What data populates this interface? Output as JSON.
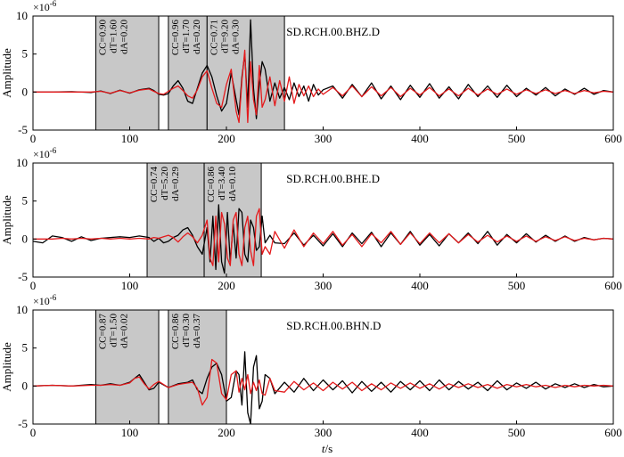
{
  "figure": {
    "xlabel": "t/s",
    "xlabel_italic": "t",
    "xlabel_unit": "/s"
  },
  "chart_data": [
    {
      "type": "line",
      "title": "SD.RCH.00.BHZ.D",
      "ylabel": "Amplitude",
      "exponent": "×10",
      "exponent_power": "-6",
      "xlim": [
        0,
        600
      ],
      "ylim": [
        -5,
        10
      ],
      "xticks": [
        0,
        100,
        200,
        300,
        400,
        500,
        600
      ],
      "yticks": [
        -5,
        0,
        5,
        10
      ],
      "colors": {
        "observed": "#000000",
        "synthetic": "#e41a1c",
        "window": "#c8c8c8"
      },
      "windows": [
        {
          "start": 65,
          "end": 130,
          "labels": [
            "CC=0.90",
            "dT=1.60",
            "dA=0.20"
          ]
        },
        {
          "start": 140,
          "end": 180,
          "labels": [
            "CC=0.96",
            "dT=1.70",
            "dA=0.20"
          ]
        },
        {
          "start": 180,
          "end": 260,
          "labels": [
            "CC=0.71",
            "dT=9.20",
            "dA=0.30"
          ]
        }
      ],
      "series": [
        {
          "role": "observed",
          "x": [
            0,
            20,
            40,
            60,
            70,
            80,
            90,
            100,
            110,
            120,
            125,
            130,
            135,
            140,
            145,
            150,
            155,
            160,
            165,
            170,
            175,
            180,
            185,
            190,
            195,
            200,
            205,
            210,
            213,
            216,
            219,
            222,
            225,
            228,
            231,
            234,
            237,
            240,
            245,
            250,
            255,
            260,
            265,
            270,
            275,
            280,
            285,
            290,
            295,
            300,
            310,
            320,
            330,
            340,
            350,
            360,
            370,
            380,
            390,
            400,
            410,
            420,
            430,
            440,
            450,
            460,
            470,
            480,
            490,
            500,
            510,
            520,
            530,
            540,
            550,
            560,
            570,
            580,
            590,
            600
          ],
          "y": [
            0,
            0,
            0.05,
            -0.05,
            0.15,
            -0.2,
            0.25,
            -0.15,
            0.3,
            0.5,
            0.2,
            -0.3,
            -0.4,
            -0.2,
            0.8,
            1.5,
            0.5,
            -1.2,
            -1.5,
            0.5,
            2.5,
            3.5,
            2.0,
            -0.5,
            -2.5,
            -1.5,
            2.5,
            -1.0,
            -3.0,
            2.0,
            5.0,
            -2.0,
            9.5,
            0.5,
            -3.5,
            1.0,
            4.0,
            3.0,
            -1.2,
            1.2,
            -0.8,
            0.6,
            -1.0,
            1.2,
            -0.6,
            0.8,
            -1.2,
            1.0,
            -0.4,
            0.3,
            0.8,
            -0.8,
            1.0,
            -0.6,
            1.2,
            -0.9,
            0.8,
            -1.0,
            0.9,
            -0.7,
            1.1,
            -0.8,
            0.7,
            -0.9,
            1.0,
            -0.6,
            0.8,
            -0.7,
            0.9,
            -0.6,
            0.5,
            -0.4,
            0.6,
            -0.5,
            0.4,
            -0.3,
            0.5,
            -0.3,
            0.2,
            0
          ]
        },
        {
          "role": "synthetic",
          "x": [
            0,
            20,
            40,
            60,
            70,
            80,
            90,
            100,
            110,
            120,
            125,
            130,
            135,
            140,
            145,
            150,
            155,
            160,
            165,
            170,
            175,
            180,
            185,
            190,
            195,
            200,
            205,
            210,
            213,
            216,
            219,
            222,
            225,
            228,
            231,
            234,
            237,
            240,
            245,
            250,
            255,
            260,
            265,
            270,
            275,
            280,
            285,
            290,
            295,
            300,
            310,
            320,
            330,
            340,
            350,
            360,
            370,
            380,
            390,
            400,
            410,
            420,
            430,
            440,
            450,
            460,
            470,
            480,
            490,
            500,
            510,
            520,
            530,
            540,
            550,
            560,
            570,
            580,
            590,
            600
          ],
          "y": [
            0,
            0,
            0,
            0,
            0.1,
            -0.15,
            0.2,
            -0.1,
            0.25,
            0.4,
            0.1,
            -0.2,
            -0.3,
            0.1,
            0.5,
            0.8,
            0.2,
            -0.5,
            -0.8,
            0.3,
            2.0,
            2.8,
            0.5,
            -1.5,
            -2.0,
            1.0,
            3.0,
            -2.5,
            -4.0,
            1.5,
            5.5,
            -4.0,
            4.0,
            -1.0,
            -3.0,
            3.5,
            -2.0,
            -1.0,
            2.0,
            -1.8,
            1.5,
            -1.2,
            2.0,
            -1.5,
            1.0,
            -0.5,
            0.8,
            -0.6,
            0.4,
            -0.3,
            0.6,
            -0.5,
            0.8,
            -0.6,
            0.7,
            -0.5,
            0.6,
            -0.6,
            0.5,
            -0.4,
            0.6,
            -0.5,
            0.4,
            -0.5,
            0.5,
            -0.4,
            0.4,
            -0.3,
            0.4,
            -0.3,
            0.3,
            -0.2,
            0.3,
            -0.2,
            0.2,
            -0.2,
            0.2,
            -0.1,
            0.1,
            0
          ]
        }
      ]
    },
    {
      "type": "line",
      "title": "SD.RCH.00.BHE.D",
      "ylabel": "Amplitude",
      "exponent": "×10",
      "exponent_power": "-6",
      "xlim": [
        0,
        600
      ],
      "ylim": [
        -5,
        10
      ],
      "xticks": [
        0,
        100,
        200,
        300,
        400,
        500,
        600
      ],
      "yticks": [
        -5,
        0,
        5,
        10
      ],
      "colors": {
        "observed": "#000000",
        "synthetic": "#e41a1c",
        "window": "#c8c8c8"
      },
      "windows": [
        {
          "start": 118,
          "end": 177,
          "labels": [
            "CC=0.74",
            "dT=5.20",
            "dA=0.29"
          ]
        },
        {
          "start": 177,
          "end": 236,
          "labels": [
            "CC=0.86",
            "dT=3.40",
            "dA=0.10"
          ]
        }
      ],
      "series": [
        {
          "role": "observed",
          "x": [
            0,
            10,
            20,
            30,
            40,
            50,
            60,
            70,
            80,
            90,
            100,
            110,
            120,
            125,
            130,
            135,
            140,
            145,
            150,
            155,
            160,
            165,
            170,
            175,
            180,
            183,
            186,
            189,
            192,
            195,
            198,
            201,
            204,
            207,
            210,
            213,
            216,
            219,
            222,
            225,
            228,
            231,
            234,
            237,
            240,
            245,
            250,
            260,
            270,
            280,
            290,
            300,
            310,
            320,
            330,
            340,
            350,
            360,
            370,
            380,
            390,
            400,
            410,
            420,
            430,
            440,
            450,
            460,
            470,
            480,
            490,
            500,
            510,
            520,
            530,
            540,
            550,
            560,
            570,
            580,
            590,
            600
          ],
          "y": [
            -0.3,
            -0.5,
            0.4,
            0.2,
            -0.3,
            0.3,
            -0.2,
            0.1,
            0.2,
            0.3,
            0.2,
            0.4,
            0.2,
            -0.3,
            0.1,
            -0.5,
            -0.3,
            0.2,
            0.5,
            1.2,
            1.5,
            0.5,
            -1.0,
            -2.0,
            1.5,
            -3.0,
            3.0,
            -4.0,
            4.5,
            -3.0,
            -4.5,
            3.5,
            -3.0,
            2.0,
            -2.5,
            4.0,
            3.5,
            -2.0,
            -3.0,
            2.5,
            1.5,
            -1.5,
            -1.0,
            3.0,
            -0.5,
            0.5,
            -0.5,
            -0.6,
            0.8,
            -0.8,
            0.5,
            -0.9,
            0.7,
            -1.0,
            0.8,
            -0.6,
            0.9,
            -1.0,
            0.8,
            -0.7,
            1.0,
            -0.8,
            0.6,
            -0.9,
            0.7,
            -0.5,
            0.8,
            -0.6,
            1.0,
            -0.8,
            0.6,
            -0.5,
            0.7,
            -0.4,
            0.5,
            -0.3,
            0.4,
            -0.3,
            0.2,
            -0.1,
            0.1,
            0
          ]
        },
        {
          "role": "synthetic",
          "x": [
            0,
            10,
            20,
            30,
            40,
            50,
            60,
            70,
            80,
            90,
            100,
            110,
            120,
            125,
            130,
            135,
            140,
            145,
            150,
            155,
            160,
            165,
            170,
            175,
            180,
            183,
            186,
            189,
            192,
            195,
            198,
            201,
            204,
            207,
            210,
            213,
            216,
            219,
            222,
            225,
            228,
            231,
            234,
            237,
            240,
            245,
            250,
            260,
            270,
            280,
            290,
            300,
            310,
            320,
            330,
            340,
            350,
            360,
            370,
            380,
            390,
            400,
            410,
            420,
            430,
            440,
            450,
            460,
            470,
            480,
            490,
            500,
            510,
            520,
            530,
            540,
            550,
            560,
            570,
            580,
            590,
            600
          ],
          "y": [
            0,
            0,
            0,
            0.1,
            0,
            0.1,
            0,
            0.1,
            0,
            0.1,
            0,
            0.1,
            0,
            0.2,
            0.1,
            0.3,
            0.5,
            0.2,
            -0.4,
            0.3,
            0.8,
            0.3,
            -0.5,
            0.5,
            2.5,
            -2.5,
            -3.5,
            3.0,
            -3.0,
            3.5,
            2.0,
            -2.5,
            -3.5,
            2.5,
            3.5,
            -2.0,
            -3.5,
            1.5,
            3.0,
            -1.5,
            -3.5,
            3.0,
            4.0,
            -2.0,
            -1.0,
            -2.0,
            1.0,
            -1.2,
            1.2,
            -1.0,
            0.8,
            -0.6,
            1.0,
            -0.8,
            0.6,
            -1.0,
            0.7,
            -0.5,
            1.0,
            -0.7,
            0.8,
            -0.6,
            0.8,
            -0.5,
            0.7,
            -0.5,
            0.6,
            -0.4,
            0.5,
            -0.4,
            0.4,
            -0.3,
            0.4,
            -0.3,
            0.3,
            -0.2,
            0.3,
            -0.2,
            0.1,
            -0.1,
            0.1,
            0
          ]
        }
      ]
    },
    {
      "type": "line",
      "title": "SD.RCH.00.BHN.D",
      "ylabel": "Amplitude",
      "exponent": "×10",
      "exponent_power": "-6",
      "xlim": [
        0,
        600
      ],
      "ylim": [
        -5,
        10
      ],
      "xticks": [
        0,
        100,
        200,
        300,
        400,
        500,
        600
      ],
      "yticks": [
        -5,
        0,
        5,
        10
      ],
      "colors": {
        "observed": "#000000",
        "synthetic": "#e41a1c",
        "window": "#c8c8c8"
      },
      "windows": [
        {
          "start": 65,
          "end": 130,
          "labels": [
            "CC=0.87",
            "dT=1.50",
            "dA=0.02"
          ]
        },
        {
          "start": 140,
          "end": 200,
          "labels": [
            "CC=0.86",
            "dT=0.30",
            "dA=0.37"
          ]
        }
      ],
      "series": [
        {
          "role": "observed",
          "x": [
            0,
            20,
            40,
            60,
            70,
            80,
            90,
            100,
            105,
            110,
            115,
            120,
            125,
            130,
            140,
            150,
            160,
            165,
            170,
            175,
            180,
            185,
            190,
            195,
            200,
            205,
            210,
            213,
            216,
            219,
            222,
            225,
            228,
            231,
            234,
            237,
            240,
            245,
            250,
            260,
            270,
            280,
            290,
            300,
            310,
            320,
            330,
            340,
            350,
            360,
            370,
            380,
            390,
            400,
            410,
            420,
            430,
            440,
            450,
            460,
            470,
            480,
            490,
            500,
            510,
            520,
            530,
            540,
            550,
            560,
            570,
            580,
            590,
            600
          ],
          "y": [
            0,
            0.1,
            0,
            0.2,
            0.1,
            0.3,
            0.1,
            0.5,
            1.0,
            1.5,
            0.5,
            -0.5,
            -0.3,
            0.5,
            -0.2,
            0.3,
            0.5,
            0.8,
            -0.5,
            -1.0,
            1.0,
            2.5,
            3.0,
            1.5,
            -2.0,
            -1.5,
            2.0,
            1.5,
            -2.5,
            4.5,
            -3.5,
            -5.0,
            2.5,
            4.0,
            -3.0,
            -2.0,
            1.5,
            1.0,
            -1.0,
            0.5,
            -0.8,
            1.0,
            -0.6,
            0.8,
            -0.5,
            0.7,
            -0.9,
            0.6,
            -0.7,
            0.5,
            -0.8,
            0.6,
            -0.5,
            0.7,
            -0.6,
            0.8,
            -0.5,
            0.6,
            -0.4,
            0.5,
            -0.6,
            0.7,
            -0.5,
            0.4,
            -0.3,
            0.5,
            -0.4,
            0.3,
            -0.2,
            0.3,
            -0.2,
            0.2,
            -0.1,
            0
          ]
        },
        {
          "role": "synthetic",
          "x": [
            0,
            20,
            40,
            60,
            70,
            80,
            90,
            100,
            105,
            110,
            115,
            120,
            125,
            130,
            140,
            150,
            160,
            165,
            170,
            175,
            180,
            185,
            190,
            195,
            200,
            205,
            210,
            213,
            216,
            219,
            222,
            225,
            228,
            231,
            234,
            237,
            240,
            245,
            250,
            260,
            270,
            280,
            290,
            300,
            310,
            320,
            330,
            340,
            350,
            360,
            370,
            380,
            390,
            400,
            410,
            420,
            430,
            440,
            450,
            460,
            470,
            480,
            490,
            500,
            510,
            520,
            530,
            540,
            550,
            560,
            570,
            580,
            590,
            600
          ],
          "y": [
            0,
            0.1,
            0,
            0.1,
            0.1,
            0.2,
            0.1,
            0.4,
            1.0,
            1.2,
            0.3,
            -0.4,
            0.2,
            0.6,
            -0.2,
            0.2,
            0.4,
            0.5,
            -0.3,
            -2.5,
            -1.5,
            3.5,
            3.0,
            -1.0,
            -1.8,
            1.5,
            2.0,
            -0.8,
            1.0,
            -0.5,
            1.5,
            -1.0,
            0.5,
            -0.6,
            0.8,
            -1.0,
            -1.2,
            1.0,
            -0.6,
            -0.8,
            0.6,
            -0.5,
            0.4,
            -0.6,
            0.5,
            -0.4,
            0.5,
            -0.6,
            0.3,
            -0.5,
            0.4,
            -0.3,
            0.4,
            -0.3,
            0.3,
            -0.4,
            0.3,
            -0.2,
            0.3,
            -0.2,
            0.2,
            -0.3,
            0.2,
            -0.1,
            0.2,
            -0.1,
            0.1,
            -0.2,
            0.1,
            -0.1,
            0.1,
            0,
            0.1,
            0
          ]
        }
      ]
    }
  ]
}
